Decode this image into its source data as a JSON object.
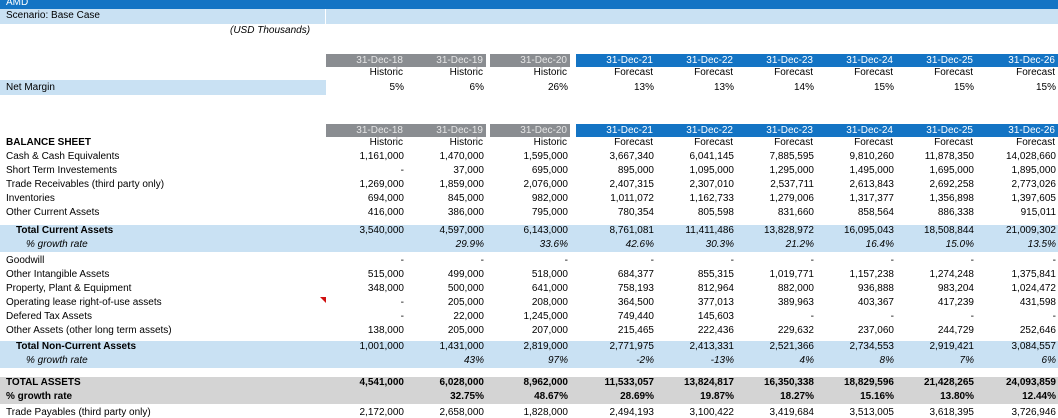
{
  "header": {
    "company": "AMD",
    "scenario": "Scenario: Base Case",
    "units": "(USD Thousands)"
  },
  "periods": [
    {
      "date": "31-Dec-18",
      "type": "Historic",
      "kind": "h"
    },
    {
      "date": "31-Dec-19",
      "type": "Historic",
      "kind": "h"
    },
    {
      "date": "31-Dec-20",
      "type": "Historic",
      "kind": "h"
    },
    {
      "date": "31-Dec-21",
      "type": "Forecast",
      "kind": "f"
    },
    {
      "date": "31-Dec-22",
      "type": "Forecast",
      "kind": "f"
    },
    {
      "date": "31-Dec-23",
      "type": "Forecast",
      "kind": "f"
    },
    {
      "date": "31-Dec-24",
      "type": "Forecast",
      "kind": "f"
    },
    {
      "date": "31-Dec-25",
      "type": "Forecast",
      "kind": "f"
    },
    {
      "date": "31-Dec-26",
      "type": "Forecast",
      "kind": "f"
    }
  ],
  "net_margin": {
    "label": "Net Margin",
    "values": [
      "5%",
      "6%",
      "26%",
      "13%",
      "13%",
      "14%",
      "15%",
      "15%",
      "15%"
    ]
  },
  "balance_sheet_title": "BALANCE SHEET",
  "rows": [
    {
      "label": "Cash & Cash Equivalents",
      "values": [
        "1,161,000",
        "1,470,000",
        "1,595,000",
        "3,667,340",
        "6,041,145",
        "7,885,595",
        "9,810,260",
        "11,878,350",
        "14,028,660"
      ]
    },
    {
      "label": "Short Term Investements",
      "values": [
        "-",
        "37,000",
        "695,000",
        "895,000",
        "1,095,000",
        "1,295,000",
        "1,495,000",
        "1,695,000",
        "1,895,000"
      ]
    },
    {
      "label": "Trade Receivables (third party only)",
      "values": [
        "1,269,000",
        "1,859,000",
        "2,076,000",
        "2,407,315",
        "2,307,010",
        "2,537,711",
        "2,613,843",
        "2,692,258",
        "2,773,026"
      ]
    },
    {
      "label": "Inventories",
      "values": [
        "694,000",
        "845,000",
        "982,000",
        "1,011,072",
        "1,162,733",
        "1,279,006",
        "1,317,377",
        "1,356,898",
        "1,397,605"
      ]
    },
    {
      "label": "Other Current Assets",
      "values": [
        "416,000",
        "386,000",
        "795,000",
        "780,354",
        "805,598",
        "831,660",
        "858,564",
        "886,338",
        "915,011"
      ]
    },
    {
      "label": "Total Current Assets",
      "style": "total",
      "values": [
        "3,540,000",
        "4,597,000",
        "6,143,000",
        "8,761,081",
        "11,411,486",
        "13,828,972",
        "16,095,043",
        "18,508,844",
        "21,009,302"
      ]
    },
    {
      "label": "% growth rate",
      "style": "growth",
      "values": [
        "",
        "29.9%",
        "33.6%",
        "42.6%",
        "30.3%",
        "21.2%",
        "16.4%",
        "15.0%",
        "13.5%"
      ]
    },
    {
      "label": "Goodwill",
      "values": [
        "-",
        "-",
        "-",
        "-",
        "-",
        "-",
        "-",
        "-",
        "-"
      ]
    },
    {
      "label": "Other Intangible Assets",
      "values": [
        "515,000",
        "499,000",
        "518,000",
        "684,377",
        "855,315",
        "1,019,771",
        "1,157,238",
        "1,274,248",
        "1,375,841"
      ]
    },
    {
      "label": "Property, Plant & Equipment",
      "values": [
        "348,000",
        "500,000",
        "641,000",
        "758,193",
        "812,964",
        "882,000",
        "936,888",
        "983,204",
        "1,024,472"
      ]
    },
    {
      "label": "Operating lease right-of-use assets",
      "values": [
        "-",
        "205,000",
        "208,000",
        "364,500",
        "377,013",
        "389,963",
        "403,367",
        "417,239",
        "431,598"
      ]
    },
    {
      "label": "Defered Tax Assets",
      "values": [
        "-",
        "22,000",
        "1,245,000",
        "749,440",
        "145,603",
        "-",
        "-",
        "-",
        "-"
      ]
    },
    {
      "label": "Other Assets (other long term assets)",
      "values": [
        "138,000",
        "205,000",
        "207,000",
        "215,465",
        "222,436",
        "229,632",
        "237,060",
        "244,729",
        "252,646"
      ]
    },
    {
      "label": "Total Non-Current Assets",
      "style": "total",
      "values": [
        "1,001,000",
        "1,431,000",
        "2,819,000",
        "2,771,975",
        "2,413,331",
        "2,521,366",
        "2,734,553",
        "2,919,421",
        "3,084,557"
      ]
    },
    {
      "label": "% growth rate",
      "style": "growth",
      "values": [
        "",
        "43%",
        "97%",
        "-2%",
        "-13%",
        "4%",
        "8%",
        "7%",
        "6%"
      ]
    },
    {
      "label": "TOTAL ASSETS",
      "style": "grand",
      "values": [
        "4,541,000",
        "6,028,000",
        "8,962,000",
        "11,533,057",
        "13,824,817",
        "16,350,338",
        "18,829,596",
        "21,428,265",
        "24,093,859"
      ]
    },
    {
      "label": "% growth rate",
      "style": "grandgrowth",
      "values": [
        "",
        "32.75%",
        "48.67%",
        "28.69%",
        "19.87%",
        "18.27%",
        "15.16%",
        "13.80%",
        "12.44%"
      ]
    },
    {
      "label": "Trade Payables (third party only)",
      "style": "cut",
      "values": [
        "2,172,000",
        "2,658,000",
        "1,828,000",
        "2,494,193",
        "3,100,422",
        "3,419,684",
        "3,513,005",
        "3,618,395",
        "3,726,946"
      ]
    }
  ],
  "colors": {
    "top_bar": "#1474c4",
    "label_band": "#c9e1f3",
    "header_historic": "#8a8d91",
    "header_forecast": "#1474c4",
    "total_band": "#c9e1f3",
    "grand_band": "#d4d4d4"
  }
}
